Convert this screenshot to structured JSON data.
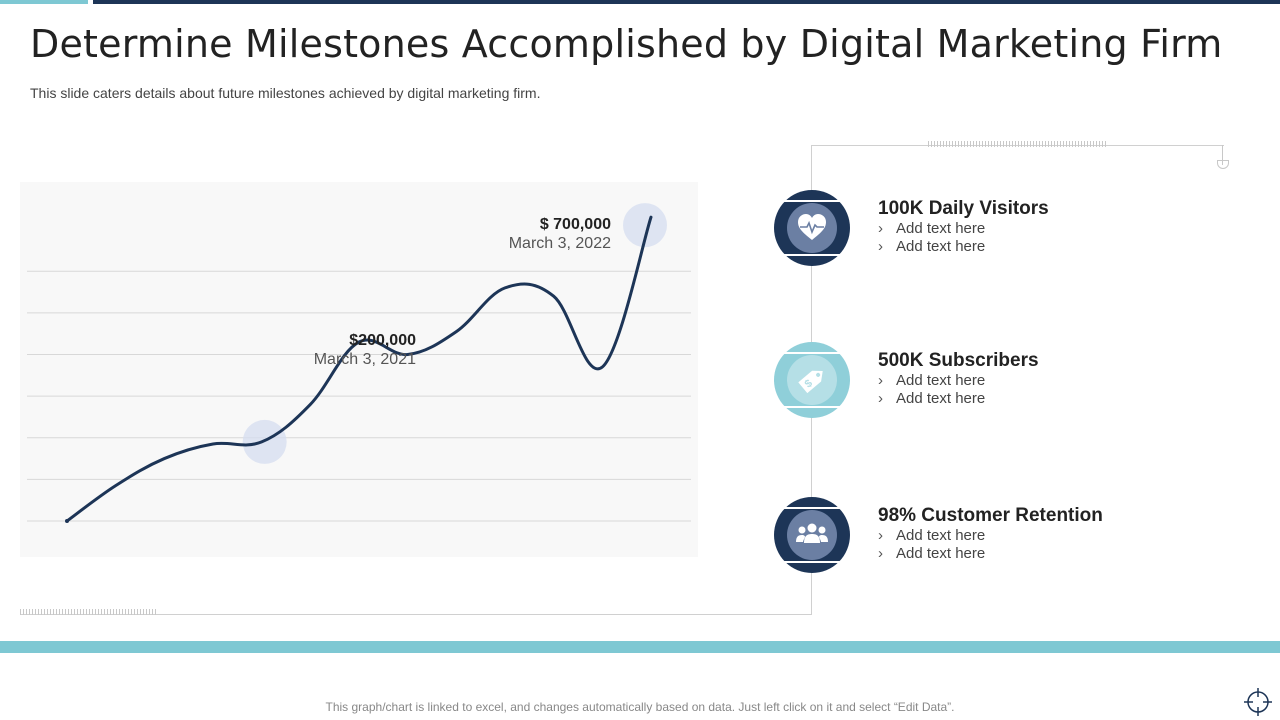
{
  "title": "Determine Milestones Accomplished by Digital Marketing Firm",
  "subtitle": "This slide caters details about future milestones achieved by digital marketing firm.",
  "colors": {
    "navy": "#1d3557",
    "teal": "#7ec8d3",
    "teal_dark": "#8fcfd9",
    "highlight": "#d6def0"
  },
  "chart_data": {
    "type": "line",
    "title": "",
    "xlabel": "",
    "ylabel": "",
    "x": [
      0,
      1,
      2,
      3,
      4,
      5,
      6,
      7,
      8,
      9,
      10,
      11,
      12
    ],
    "values": [
      0,
      85000,
      150000,
      185000,
      190000,
      280000,
      430000,
      400000,
      455000,
      560000,
      540000,
      370000,
      730000
    ],
    "ylim": [
      0,
      800000
    ],
    "gridlines": 7,
    "grid": true,
    "annotations": [
      {
        "label": "$200,000",
        "date": "March 3, 2021"
      },
      {
        "label": "$ 700,000",
        "date": "March 3, 2022"
      }
    ]
  },
  "milestones": [
    {
      "title": "100K Daily Visitors",
      "icon": "heart-pulse-icon",
      "points": [
        "Add text here",
        "Add text here"
      ]
    },
    {
      "title": "500K Subscribers",
      "icon": "price-tag-icon",
      "points": [
        "Add text here",
        "Add text here"
      ]
    },
    {
      "title": "98% Customer Retention",
      "icon": "people-group-icon",
      "points": [
        "Add text here",
        "Add text here"
      ]
    }
  ],
  "bullet_glyph": "›",
  "footnote": "This graph/chart is linked to excel, and changes automatically based on data. Just left click on it and select “Edit Data”."
}
